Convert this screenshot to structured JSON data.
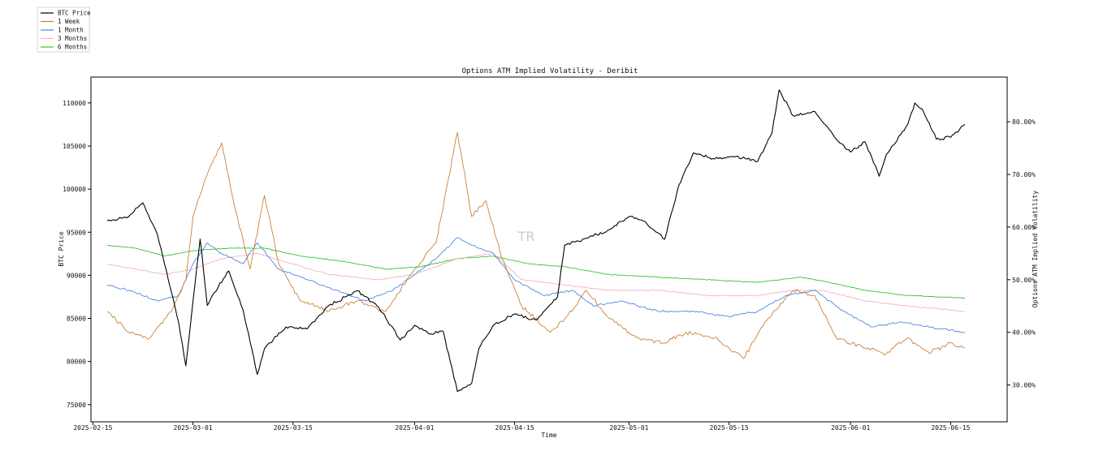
{
  "chart_data": {
    "type": "line",
    "title": "Options ATM Implied Volatility - Deribit",
    "xlabel": "Time",
    "ylabel_left": "BTC Price",
    "ylabel_right": "Options ATM Implied Volatility",
    "watermark": "TR",
    "legend_placement": "top-left",
    "grid": false,
    "x_range": [
      "2025-02-17",
      "2025-06-17"
    ],
    "x_ticks": [
      "2025-02-15",
      "2025-03-01",
      "2025-03-15",
      "2025-04-01",
      "2025-04-15",
      "2025-05-01",
      "2025-05-15",
      "2025-06-01",
      "2025-06-15"
    ],
    "ylim_left": [
      73000,
      113000
    ],
    "yticks_left": [
      75000,
      80000,
      85000,
      90000,
      95000,
      100000,
      105000,
      110000
    ],
    "ylim_right": [
      0.23,
      0.885
    ],
    "yticks_right": [
      0.3,
      0.4,
      0.5,
      0.6,
      0.7,
      0.8
    ],
    "yticks_right_labels": [
      "30.00%",
      "40.00%",
      "50.00%",
      "60.00%",
      "70.00%",
      "80.00%"
    ],
    "series": [
      {
        "name": "BTC Price",
        "axis": "left",
        "color": "#000000",
        "x": [
          "2025-02-17",
          "2025-02-20",
          "2025-02-22",
          "2025-02-24",
          "2025-02-26",
          "2025-02-27",
          "2025-02-28",
          "2025-03-02",
          "2025-03-03",
          "2025-03-04",
          "2025-03-06",
          "2025-03-08",
          "2025-03-10",
          "2025-03-11",
          "2025-03-14",
          "2025-03-17",
          "2025-03-20",
          "2025-03-24",
          "2025-03-27",
          "2025-03-30",
          "2025-04-01",
          "2025-04-03",
          "2025-04-05",
          "2025-04-07",
          "2025-04-09",
          "2025-04-10",
          "2025-04-12",
          "2025-04-15",
          "2025-04-18",
          "2025-04-21",
          "2025-04-22",
          "2025-04-25",
          "2025-04-28",
          "2025-05-01",
          "2025-05-03",
          "2025-05-06",
          "2025-05-08",
          "2025-05-10",
          "2025-05-13",
          "2025-05-16",
          "2025-05-19",
          "2025-05-21",
          "2025-05-22",
          "2025-05-24",
          "2025-05-27",
          "2025-05-30",
          "2025-06-01",
          "2025-06-03",
          "2025-06-05",
          "2025-06-06",
          "2025-06-09",
          "2025-06-10",
          "2025-06-11",
          "2025-06-13",
          "2025-06-15",
          "2025-06-17"
        ],
        "y": [
          96300,
          96800,
          98400,
          94800,
          88000,
          84500,
          79500,
          94200,
          86500,
          88000,
          90500,
          86000,
          78500,
          81500,
          84000,
          83800,
          86500,
          88200,
          86300,
          82500,
          84200,
          83200,
          83500,
          76500,
          77500,
          81500,
          84200,
          85500,
          84800,
          87500,
          93500,
          94300,
          95200,
          96800,
          96300,
          94200,
          100500,
          104200,
          103500,
          103800,
          103200,
          106500,
          111500,
          108500,
          109000,
          105800,
          104300,
          105500,
          101500,
          104000,
          107500,
          110000,
          109300,
          105800,
          106000,
          107500
        ]
      },
      {
        "name": "1 Week",
        "axis": "right",
        "color": "#cd8035",
        "x": [
          "2025-02-17",
          "2025-02-20",
          "2025-02-23",
          "2025-02-26",
          "2025-02-28",
          "2025-03-01",
          "2025-03-03",
          "2025-03-05",
          "2025-03-07",
          "2025-03-09",
          "2025-03-11",
          "2025-03-13",
          "2025-03-16",
          "2025-03-20",
          "2025-03-24",
          "2025-03-28",
          "2025-04-01",
          "2025-04-04",
          "2025-04-07",
          "2025-04-09",
          "2025-04-11",
          "2025-04-13",
          "2025-04-16",
          "2025-04-20",
          "2025-04-23",
          "2025-04-25",
          "2025-04-28",
          "2025-05-02",
          "2025-05-06",
          "2025-05-09",
          "2025-05-13",
          "2025-05-17",
          "2025-05-20",
          "2025-05-24",
          "2025-05-27",
          "2025-05-30",
          "2025-06-03",
          "2025-06-06",
          "2025-06-09",
          "2025-06-12",
          "2025-06-15",
          "2025-06-17"
        ],
        "y": [
          0.44,
          0.4,
          0.39,
          0.44,
          0.5,
          0.62,
          0.7,
          0.76,
          0.63,
          0.52,
          0.66,
          0.53,
          0.46,
          0.44,
          0.46,
          0.44,
          0.52,
          0.57,
          0.78,
          0.62,
          0.65,
          0.55,
          0.45,
          0.4,
          0.44,
          0.48,
          0.43,
          0.39,
          0.38,
          0.4,
          0.39,
          0.35,
          0.42,
          0.48,
          0.47,
          0.39,
          0.37,
          0.36,
          0.39,
          0.36,
          0.38,
          0.37
        ]
      },
      {
        "name": "1 Month",
        "axis": "right",
        "color": "#4f84e6",
        "x": [
          "2025-02-17",
          "2025-02-20",
          "2025-02-24",
          "2025-02-27",
          "2025-03-01",
          "2025-03-03",
          "2025-03-05",
          "2025-03-08",
          "2025-03-10",
          "2025-03-13",
          "2025-03-17",
          "2025-03-21",
          "2025-03-25",
          "2025-03-29",
          "2025-04-01",
          "2025-04-04",
          "2025-04-07",
          "2025-04-10",
          "2025-04-12",
          "2025-04-15",
          "2025-04-19",
          "2025-04-23",
          "2025-04-26",
          "2025-04-30",
          "2025-05-05",
          "2025-05-10",
          "2025-05-15",
          "2025-05-19",
          "2025-05-23",
          "2025-05-27",
          "2025-05-31",
          "2025-06-04",
          "2025-06-08",
          "2025-06-12",
          "2025-06-17"
        ],
        "y": [
          0.49,
          0.48,
          0.46,
          0.47,
          0.53,
          0.57,
          0.55,
          0.53,
          0.57,
          0.52,
          0.5,
          0.48,
          0.46,
          0.48,
          0.51,
          0.54,
          0.58,
          0.56,
          0.55,
          0.5,
          0.47,
          0.48,
          0.45,
          0.46,
          0.44,
          0.44,
          0.43,
          0.44,
          0.47,
          0.48,
          0.44,
          0.41,
          0.42,
          0.41,
          0.4
        ]
      },
      {
        "name": "3 Months",
        "axis": "right",
        "color": "#f4b3bf",
        "x": [
          "2025-02-17",
          "2025-02-21",
          "2025-02-25",
          "2025-03-01",
          "2025-03-05",
          "2025-03-10",
          "2025-03-15",
          "2025-03-20",
          "2025-03-27",
          "2025-04-01",
          "2025-04-07",
          "2025-04-12",
          "2025-04-16",
          "2025-04-22",
          "2025-04-28",
          "2025-05-05",
          "2025-05-12",
          "2025-05-19",
          "2025-05-24",
          "2025-05-28",
          "2025-06-03",
          "2025-06-09",
          "2025-06-17"
        ],
        "y": [
          0.53,
          0.52,
          0.51,
          0.52,
          0.54,
          0.55,
          0.53,
          0.51,
          0.5,
          0.51,
          0.54,
          0.55,
          0.5,
          0.49,
          0.48,
          0.48,
          0.47,
          0.47,
          0.48,
          0.48,
          0.46,
          0.45,
          0.44
        ]
      },
      {
        "name": "6 Months",
        "axis": "right",
        "color": "#2fc92f",
        "x": [
          "2025-02-17",
          "2025-02-21",
          "2025-02-25",
          "2025-03-01",
          "2025-03-06",
          "2025-03-11",
          "2025-03-16",
          "2025-03-22",
          "2025-03-28",
          "2025-04-02",
          "2025-04-07",
          "2025-04-12",
          "2025-04-17",
          "2025-04-22",
          "2025-04-28",
          "2025-05-05",
          "2025-05-12",
          "2025-05-19",
          "2025-05-25",
          "2025-05-29",
          "2025-06-03",
          "2025-06-09",
          "2025-06-17"
        ],
        "y": [
          0.565,
          0.56,
          0.545,
          0.555,
          0.56,
          0.56,
          0.545,
          0.535,
          0.52,
          0.525,
          0.54,
          0.545,
          0.53,
          0.525,
          0.51,
          0.505,
          0.5,
          0.495,
          0.505,
          0.495,
          0.48,
          0.47,
          0.465
        ]
      }
    ]
  }
}
